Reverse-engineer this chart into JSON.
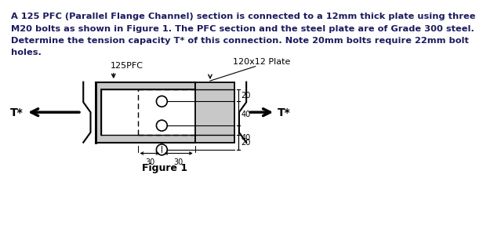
{
  "title_lines": [
    "A 125 PFC (Parallel Flange Channel) section is connected to a 12mm thick plate using three",
    "M20 bolts as shown in Figure 1. The PFC section and the steel plate are of Grade 300 steel.",
    "Determine the tension capacity T* of this connection. Note 20mm bolts require 22mm bolt",
    "holes."
  ],
  "figure_caption": "Figure 1",
  "label_125PFC": "125PFC",
  "label_plate": "120x12 Plate",
  "label_T_left": "T*",
  "label_T_right": "T*",
  "dim_20_top": "20",
  "dim_40_upper": "40",
  "dim_40_lower": "40",
  "dim_20_bot": "20",
  "dim_30_left": "30",
  "dim_30_right": "30",
  "bg_color": "#ffffff",
  "line_color": "#000000",
  "text_color": "#1a1a5e",
  "fill_color": "#c8c8c8"
}
